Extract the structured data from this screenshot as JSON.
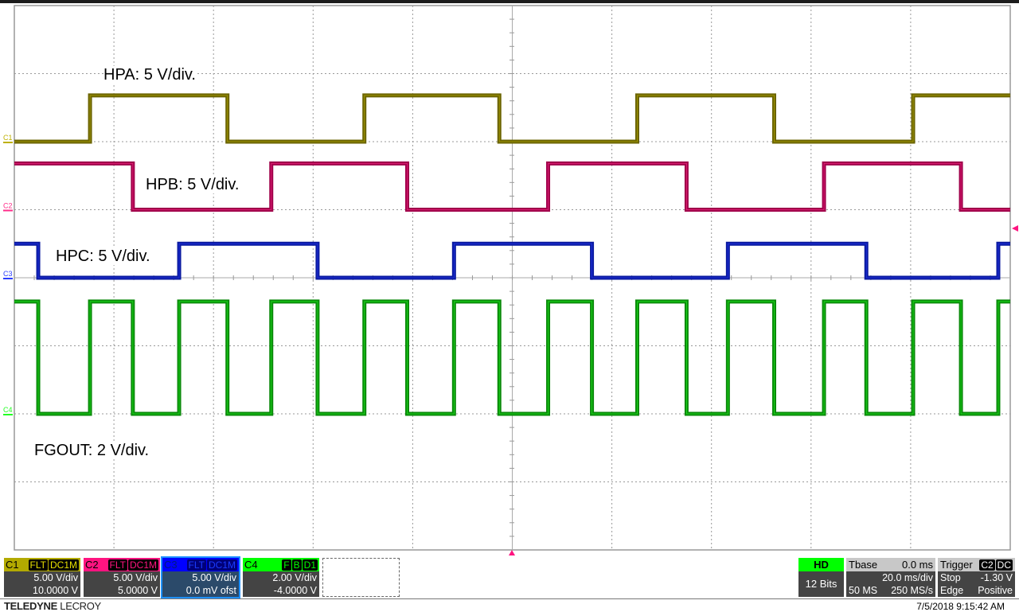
{
  "chart_data": {
    "type": "line",
    "title": "",
    "xlabel": "",
    "ylabel": "",
    "x_unit": "ms",
    "xlim": [
      -100,
      100
    ],
    "x_divisions": 10,
    "y_divisions": 8,
    "grid": true,
    "annotations": [
      "HPA: 5 V/div.",
      "HPB: 5 V/div.",
      "HPC: 5 V/div.",
      "FGOUT: 2 V/div."
    ],
    "series": [
      {
        "channel": "C1",
        "color": "#6b6400",
        "highlight": "#bdb000",
        "volts_per_div": 5,
        "offset_v": 10,
        "low_v": 0,
        "high_v": 3.4,
        "initial": "low",
        "edges_ms": [
          -84.8,
          -57.2,
          -29.7,
          -2.6,
          25.1,
          52.6,
          80.5
        ]
      },
      {
        "channel": "C2",
        "color": "#a0004a",
        "highlight": "#ff2d8a",
        "volts_per_div": 5,
        "offset_v": 5,
        "low_v": 0,
        "high_v": 3.4,
        "initial": "high",
        "edges_ms": [
          -76.2,
          -48.4,
          -21.1,
          7.2,
          35.0,
          62.6,
          90.1
        ]
      },
      {
        "channel": "C3",
        "color": "#0a1aa0",
        "highlight": "#2a3cff",
        "volts_per_div": 5,
        "offset_v": 0,
        "low_v": 0,
        "high_v": 2.5,
        "initial": "high",
        "edges_ms": [
          -95.2,
          -66.9,
          -39.1,
          -11.7,
          16.0,
          43.3,
          71.1,
          97.6
        ]
      },
      {
        "channel": "C4",
        "color": "#0a8a0a",
        "highlight": "#22ff22",
        "volts_per_div": 2,
        "offset_v": -4,
        "low_v": 0,
        "high_v": 3.3,
        "initial": "high",
        "edges_ms": [
          -95.2,
          -84.8,
          -76.2,
          -66.9,
          -57.2,
          -48.4,
          -39.1,
          -29.7,
          -21.1,
          -11.7,
          -2.6,
          7.2,
          16.0,
          25.1,
          35.0,
          43.3,
          52.6,
          62.6,
          71.1,
          80.5,
          90.1,
          97.6
        ]
      }
    ]
  },
  "channels": [
    {
      "name": "C1",
      "tags": [
        "FLT",
        "DC1M"
      ],
      "scale": "5.00 V/div",
      "offset": "10.0000 V",
      "color": "#b3aa00",
      "tag_color": "#e8e000"
    },
    {
      "name": "C2",
      "tags": [
        "FLT",
        "DC1M"
      ],
      "scale": "5.00 V/div",
      "offset": "5.0000 V",
      "color": "#ff1480",
      "tag_color": "#ff1480"
    },
    {
      "name": "C3",
      "tags": [
        "FLT",
        "DC1M"
      ],
      "scale": "5.00 V/div",
      "offset": "0.0 mV ofst",
      "color": "#0000ff",
      "tag_color": "#1a3cff"
    },
    {
      "name": "C4",
      "tags": [
        "F",
        "B",
        "D1"
      ],
      "scale": "2.00 V/div",
      "offset": "-4.0000 V",
      "color": "#00ff00",
      "tag_color": "#00ff00"
    }
  ],
  "acquisition": {
    "mode": "HD",
    "bits": "12 Bits"
  },
  "timebase": {
    "label": "Tbase",
    "delay": "0.0 ms",
    "scale": "20.0 ms/div",
    "samples": "50 MS",
    "rate": "250 MS/s"
  },
  "trigger": {
    "label": "Trigger",
    "source": "C2",
    "coupling": "DC",
    "mode": "Stop",
    "level": "-1.30 V",
    "type": "Edge",
    "slope": "Positive"
  },
  "brand": {
    "bold": "TELEDYNE",
    "rest": "LECROY"
  },
  "timestamp": "7/5/2018 9:15:42 AM"
}
